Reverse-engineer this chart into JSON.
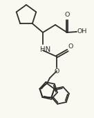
{
  "bg_color": "#faf8f0",
  "line_color": "#2e2e2e",
  "line_width": 1.3,
  "text_color": "#2e2e2e",
  "font_size": 6.8,
  "figsize": [
    1.36,
    1.71
  ],
  "dpi": 100,
  "xlim": [
    0,
    136
  ],
  "ylim": [
    0,
    171
  ]
}
